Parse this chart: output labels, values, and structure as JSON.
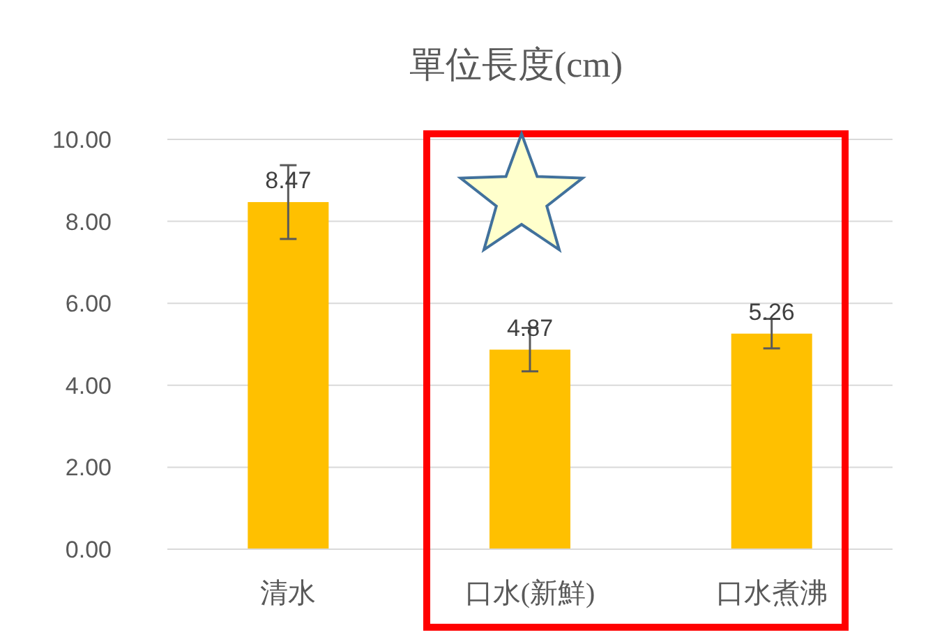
{
  "chart_data": {
    "type": "bar",
    "title": "單位長度(cm)",
    "categories": [
      "清水",
      "口水(新鮮)",
      "口水煮沸"
    ],
    "values": [
      8.47,
      4.87,
      5.26
    ],
    "errors": [
      0.9,
      0.53,
      0.36
    ],
    "color": "#ffc000",
    "ylim": [
      0,
      10
    ],
    "yticks": [
      {
        "value": 0,
        "label": "0.00"
      },
      {
        "value": 2,
        "label": "2.00"
      },
      {
        "value": 4,
        "label": "4.00"
      },
      {
        "value": 6,
        "label": "6.00"
      },
      {
        "value": 8,
        "label": "8.00"
      },
      {
        "value": 10,
        "label": "10.00"
      }
    ],
    "grid": "y",
    "data_labels": true
  }
}
